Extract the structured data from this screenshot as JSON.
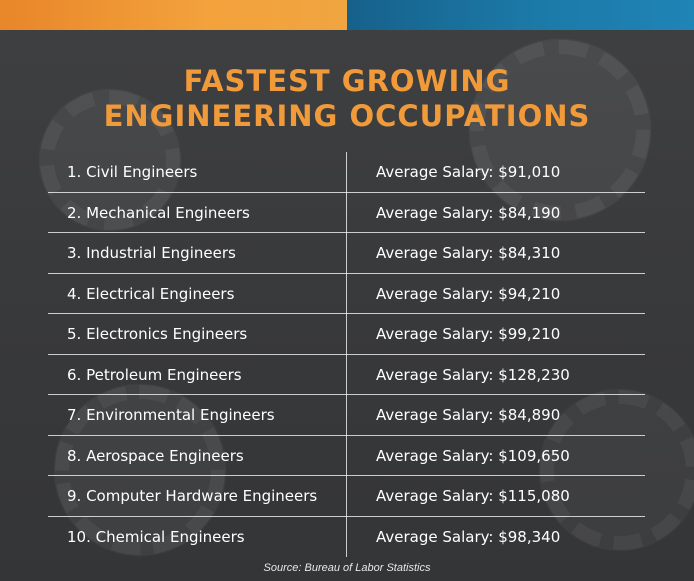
{
  "header": {
    "colors": {
      "accent_orange": "#f19a3a",
      "accent_blue": "#1c7aa8",
      "background": "#3b3c3e"
    }
  },
  "title": {
    "line1": "FASTEST GROWING",
    "line2": "ENGINEERING OCCUPATIONS"
  },
  "table": {
    "rows": [
      {
        "occupation": "1. Civil Engineers",
        "salary": "Average Salary: $91,010"
      },
      {
        "occupation": "2. Mechanical Engineers",
        "salary": "Average Salary: $84,190"
      },
      {
        "occupation": "3. Industrial Engineers",
        "salary": "Average Salary: $84,310"
      },
      {
        "occupation": "4. Electrical Engineers",
        "salary": "Average Salary: $94,210"
      },
      {
        "occupation": "5. Electronics Engineers",
        "salary": "Average Salary: $99,210"
      },
      {
        "occupation": "6. Petroleum Engineers",
        "salary": "Average Salary: $128,230"
      },
      {
        "occupation": "7. Environmental Engineers",
        "salary": "Average Salary: $84,890"
      },
      {
        "occupation": "8. Aerospace Engineers",
        "salary": "Average Salary: $109,650"
      },
      {
        "occupation": "9. Computer Hardware Engineers",
        "salary": "Average Salary: $115,080"
      },
      {
        "occupation": "10. Chemical Engineers",
        "salary": "Average Salary: $98,340"
      }
    ]
  },
  "footer": {
    "source": "Source: Bureau of Labor Statistics"
  }
}
